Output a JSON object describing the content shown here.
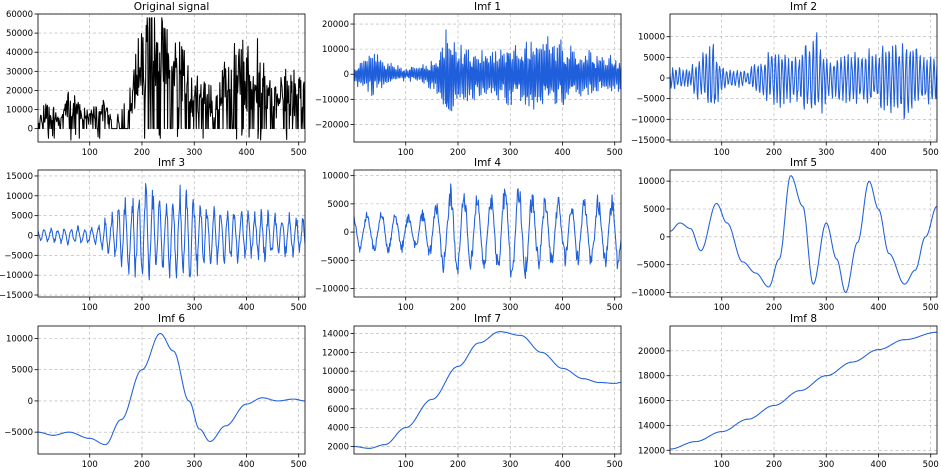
{
  "figure": {
    "colors": {
      "original": "#000000",
      "imf": "#1f5fdc",
      "grid": "#b0b0b0"
    }
  },
  "chart_data": [
    {
      "type": "line",
      "title": "Original signal",
      "xlim": [
        1,
        512
      ],
      "ylim": [
        -7000,
        60000
      ],
      "xticks": [
        100,
        200,
        300,
        400,
        500
      ],
      "yticks": [
        0,
        10000,
        20000,
        30000,
        40000,
        50000,
        60000
      ],
      "grid": true,
      "signal": {
        "kind": "original",
        "seed": 11
      },
      "series": [
        {
          "color": "#000000"
        }
      ]
    },
    {
      "type": "line",
      "title": "Imf 1",
      "xlim": [
        1,
        512
      ],
      "ylim": [
        -27000,
        24000
      ],
      "xticks": [
        100,
        200,
        300,
        400,
        500
      ],
      "yticks": [
        -20000,
        -10000,
        0,
        10000,
        20000
      ],
      "grid": true,
      "signal": {
        "kind": "imf",
        "seed": 21,
        "period": 3.2,
        "amp": [
          [
            0,
            4000
          ],
          [
            40,
            10000
          ],
          [
            60,
            6000
          ],
          [
            90,
            3000
          ],
          [
            120,
            3000
          ],
          [
            160,
            8000
          ],
          [
            180,
            20000
          ],
          [
            200,
            12000
          ],
          [
            260,
            11000
          ],
          [
            300,
            13000
          ],
          [
            360,
            17000
          ],
          [
            420,
            12000
          ],
          [
            470,
            9000
          ],
          [
            512,
            8000
          ]
        ]
      },
      "series": [
        {
          "color": "#1f5fdc"
        }
      ]
    },
    {
      "type": "line",
      "title": "Imf 2",
      "xlim": [
        1,
        512
      ],
      "ylim": [
        -15500,
        15500
      ],
      "xticks": [
        100,
        200,
        300,
        400,
        500
      ],
      "yticks": [
        -15000,
        -10000,
        -5000,
        0,
        5000,
        10000
      ],
      "grid": true,
      "signal": {
        "kind": "imf",
        "seed": 31,
        "period": 6.5,
        "amp": [
          [
            0,
            3000
          ],
          [
            40,
            2500
          ],
          [
            80,
            11000
          ],
          [
            100,
            3000
          ],
          [
            150,
            2000
          ],
          [
            200,
            8000
          ],
          [
            240,
            6000
          ],
          [
            280,
            13000
          ],
          [
            300,
            6000
          ],
          [
            360,
            7000
          ],
          [
            400,
            8000
          ],
          [
            450,
            11000
          ],
          [
            512,
            6000
          ]
        ]
      },
      "series": [
        {
          "color": "#1f5fdc"
        }
      ]
    },
    {
      "type": "line",
      "title": "Imf 3",
      "xlim": [
        1,
        512
      ],
      "ylim": [
        -15500,
        16500
      ],
      "xticks": [
        100,
        200,
        300,
        400,
        500
      ],
      "yticks": [
        -15000,
        -10000,
        -5000,
        0,
        5000,
        10000,
        15000
      ],
      "grid": true,
      "signal": {
        "kind": "imf",
        "seed": 41,
        "period": 13,
        "amp": [
          [
            0,
            1500
          ],
          [
            60,
            2500
          ],
          [
            110,
            2500
          ],
          [
            140,
            6000
          ],
          [
            180,
            12000
          ],
          [
            210,
            15000
          ],
          [
            240,
            9000
          ],
          [
            270,
            14000
          ],
          [
            290,
            12000
          ],
          [
            330,
            8000
          ],
          [
            400,
            7000
          ],
          [
            460,
            6500
          ],
          [
            512,
            5000
          ]
        ]
      },
      "series": [
        {
          "color": "#1f5fdc"
        }
      ]
    },
    {
      "type": "line",
      "title": "Imf 4",
      "xlim": [
        1,
        512
      ],
      "ylim": [
        -11500,
        11000
      ],
      "xticks": [
        100,
        200,
        300,
        400,
        500
      ],
      "yticks": [
        -10000,
        -5000,
        0,
        5000,
        10000
      ],
      "grid": true,
      "signal": {
        "kind": "imf",
        "seed": 51,
        "period": 26,
        "amp": [
          [
            0,
            3500
          ],
          [
            60,
            4000
          ],
          [
            120,
            3500
          ],
          [
            160,
            6000
          ],
          [
            200,
            10000
          ],
          [
            250,
            7000
          ],
          [
            300,
            10000
          ],
          [
            350,
            7000
          ],
          [
            420,
            6000
          ],
          [
            470,
            7000
          ],
          [
            512,
            7000
          ]
        ]
      },
      "series": [
        {
          "color": "#1f5fdc"
        }
      ]
    },
    {
      "type": "line",
      "title": "Imf 5",
      "xlim": [
        1,
        512
      ],
      "ylim": [
        -10800,
        12000
      ],
      "xticks": [
        100,
        200,
        300,
        400,
        500
      ],
      "yticks": [
        -10000,
        -5000,
        0,
        5000,
        10000
      ],
      "grid": true,
      "signal": {
        "kind": "points",
        "points": [
          [
            1,
            1000
          ],
          [
            20,
            2500
          ],
          [
            40,
            1500
          ],
          [
            60,
            -2500
          ],
          [
            90,
            6000
          ],
          [
            110,
            2500
          ],
          [
            140,
            -4500
          ],
          [
            165,
            -6500
          ],
          [
            190,
            -9000
          ],
          [
            210,
            -4000
          ],
          [
            232,
            11000
          ],
          [
            255,
            5500
          ],
          [
            275,
            -8500
          ],
          [
            300,
            2500
          ],
          [
            320,
            -4000
          ],
          [
            337,
            -10000
          ],
          [
            360,
            -1000
          ],
          [
            382,
            10000
          ],
          [
            400,
            5000
          ],
          [
            420,
            -3000
          ],
          [
            450,
            -8500
          ],
          [
            470,
            -6000
          ],
          [
            490,
            0
          ],
          [
            512,
            5500
          ]
        ]
      },
      "series": [
        {
          "color": "#1f5fdc"
        }
      ]
    },
    {
      "type": "line",
      "title": "Imf 6",
      "xlim": [
        1,
        512
      ],
      "ylim": [
        -8500,
        12000
      ],
      "xticks": [
        100,
        200,
        300,
        400,
        500
      ],
      "yticks": [
        -5000,
        0,
        5000,
        10000
      ],
      "grid": true,
      "signal": {
        "kind": "points",
        "points": [
          [
            1,
            -5000
          ],
          [
            30,
            -5500
          ],
          [
            60,
            -5000
          ],
          [
            100,
            -6000
          ],
          [
            130,
            -7000
          ],
          [
            160,
            -3000
          ],
          [
            200,
            5000
          ],
          [
            235,
            10800
          ],
          [
            260,
            8000
          ],
          [
            290,
            0
          ],
          [
            310,
            -4500
          ],
          [
            330,
            -6500
          ],
          [
            360,
            -4000
          ],
          [
            400,
            -500
          ],
          [
            430,
            500
          ],
          [
            460,
            0
          ],
          [
            490,
            300
          ],
          [
            512,
            0
          ]
        ]
      },
      "series": [
        {
          "color": "#1f5fdc"
        }
      ]
    },
    {
      "type": "line",
      "title": "Imf 7",
      "xlim": [
        1,
        512
      ],
      "ylim": [
        1200,
        14800
      ],
      "xticks": [
        100,
        200,
        300,
        400,
        500
      ],
      "yticks": [
        2000,
        4000,
        6000,
        8000,
        10000,
        12000,
        14000
      ],
      "grid": true,
      "signal": {
        "kind": "points",
        "points": [
          [
            1,
            2000
          ],
          [
            30,
            1800
          ],
          [
            60,
            2200
          ],
          [
            100,
            4000
          ],
          [
            150,
            7000
          ],
          [
            200,
            10500
          ],
          [
            240,
            13000
          ],
          [
            280,
            14200
          ],
          [
            320,
            13800
          ],
          [
            360,
            12000
          ],
          [
            400,
            10300
          ],
          [
            440,
            9200
          ],
          [
            470,
            8800
          ],
          [
            500,
            8700
          ],
          [
            512,
            8800
          ]
        ]
      },
      "series": [
        {
          "color": "#1f5fdc"
        }
      ]
    },
    {
      "type": "line",
      "title": "Imf 8",
      "xlim": [
        1,
        512
      ],
      "ylim": [
        11700,
        22000
      ],
      "xticks": [
        100,
        200,
        300,
        400,
        500
      ],
      "yticks": [
        12000,
        14000,
        16000,
        18000,
        20000
      ],
      "grid": true,
      "signal": {
        "kind": "points",
        "points": [
          [
            1,
            12100
          ],
          [
            50,
            12700
          ],
          [
            100,
            13500
          ],
          [
            150,
            14500
          ],
          [
            200,
            15600
          ],
          [
            250,
            16800
          ],
          [
            300,
            18000
          ],
          [
            350,
            19100
          ],
          [
            400,
            20100
          ],
          [
            450,
            20900
          ],
          [
            512,
            21500
          ]
        ]
      },
      "series": [
        {
          "color": "#1f5fdc"
        }
      ]
    }
  ]
}
